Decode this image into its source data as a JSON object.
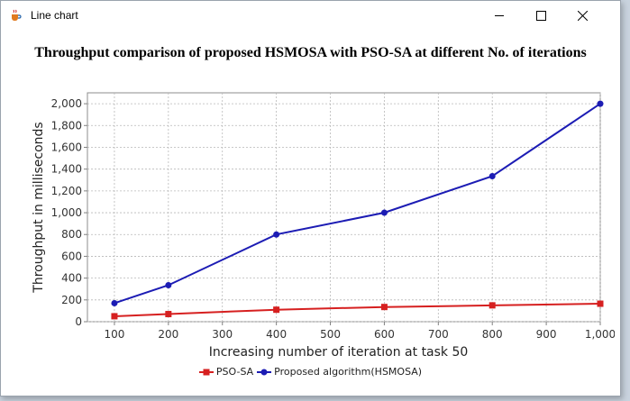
{
  "window": {
    "title": "Line chart",
    "icon": "java-cup-icon",
    "controls": [
      "minimize",
      "maximize",
      "close"
    ]
  },
  "chart_data": {
    "type": "line",
    "title": "Throughput comparison of proposed HSMOSA with PSO-SA at different No. of iterations",
    "xlabel": "Increasing number of  iteration at task 50",
    "ylabel": "Throughput in milliseconds",
    "xlim": [
      50,
      1000
    ],
    "ylim": [
      0,
      2100
    ],
    "xticks": [
      100,
      200,
      300,
      400,
      500,
      600,
      700,
      800,
      900,
      1000
    ],
    "xtick_labels": [
      "100",
      "200",
      "300",
      "400",
      "500",
      "600",
      "700",
      "800",
      "900",
      "1,000"
    ],
    "yticks": [
      0,
      200,
      400,
      600,
      800,
      1000,
      1200,
      1400,
      1600,
      1800,
      2000
    ],
    "ytick_labels": [
      "0",
      "200",
      "400",
      "600",
      "800",
      "1,000",
      "1,200",
      "1,400",
      "1,600",
      "1,800",
      "2,000"
    ],
    "grid": true,
    "legend_position": "bottom",
    "series": [
      {
        "name": "PSO-SA",
        "color": "#d62020",
        "marker": "square",
        "x": [
          100,
          200,
          400,
          600,
          800,
          1000
        ],
        "y": [
          50,
          70,
          110,
          135,
          150,
          165
        ]
      },
      {
        "name": "Proposed algorithm(HSMOSA)",
        "color": "#1c1cb4",
        "marker": "circle",
        "x": [
          100,
          200,
          400,
          600,
          800,
          1000
        ],
        "y": [
          170,
          335,
          800,
          1000,
          1335,
          2000
        ]
      }
    ]
  }
}
